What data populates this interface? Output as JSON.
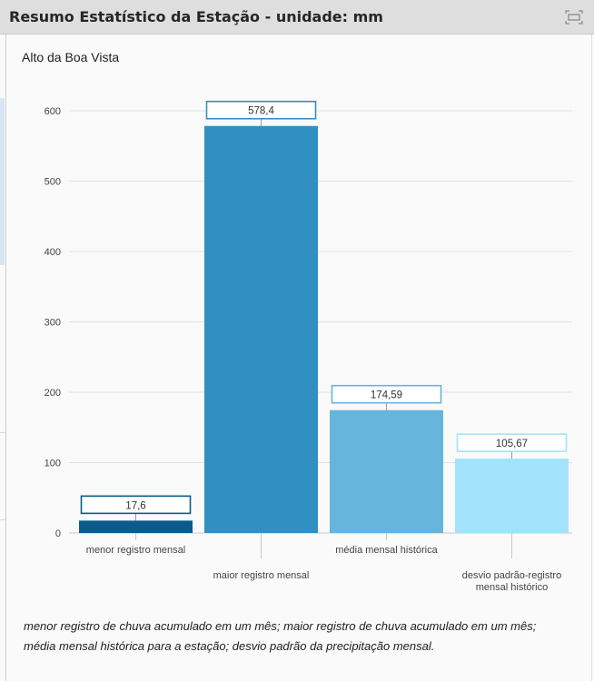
{
  "header": {
    "title": "Resumo Estatístico da Estação - unidade: mm"
  },
  "chart_data": {
    "type": "bar",
    "title": "Alto da Boa Vista",
    "categories": [
      "menor registro mensal",
      "maior registro mensal",
      "média mensal histórica",
      "desvio padrão-registro mensal histórico"
    ],
    "values": [
      17.6,
      578.4,
      174.59,
      105.67
    ],
    "value_labels": [
      "17,6",
      "578,4",
      "174,59",
      "105,67"
    ],
    "colors": [
      "#0b5a8e",
      "#3190c1",
      "#66b5dc",
      "#a2e3fb"
    ],
    "ylim": [
      0,
      600
    ],
    "yticks": [
      0,
      100,
      200,
      300,
      400,
      500,
      600
    ],
    "grid": true,
    "xlabel": "",
    "ylabel": ""
  },
  "footnote": "menor registro de chuva acumulado em um mês; maior registro de chuva acumulado em um mês; média mensal histórica para a estação; desvio padrão da precipitação mensal."
}
